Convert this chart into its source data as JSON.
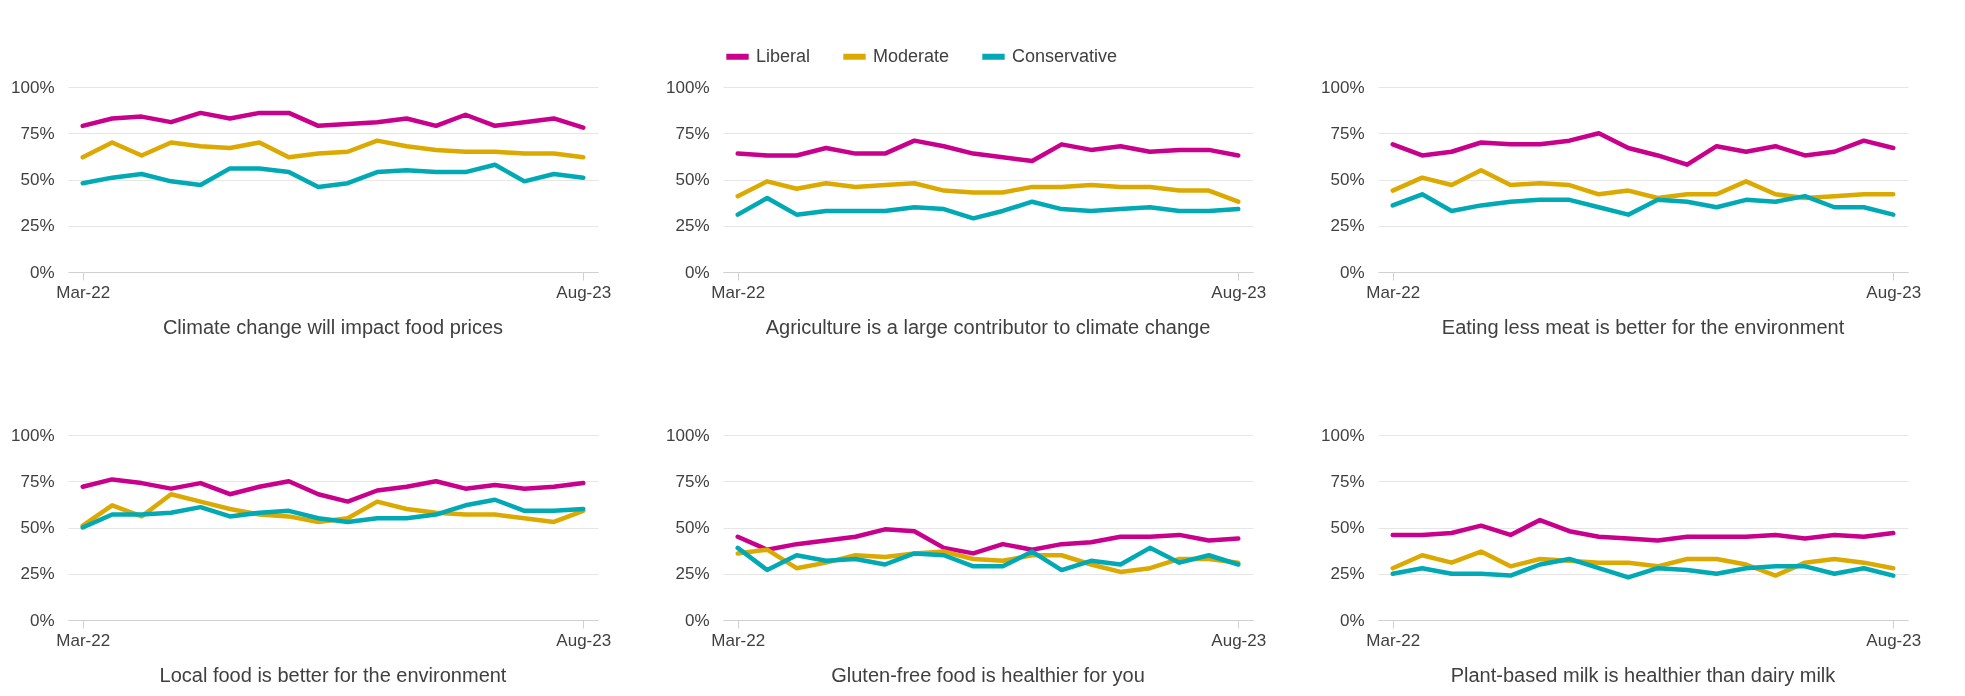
{
  "chart_data": [
    {
      "type": "line",
      "title": "Climate change will impact food prices",
      "categories": [
        "Mar-22",
        null,
        null,
        null,
        null,
        null,
        null,
        null,
        null,
        null,
        null,
        null,
        null,
        null,
        null,
        null,
        null,
        "Aug-23"
      ],
      "ylim": [
        0,
        100
      ],
      "yticks": [
        {
          "value": 0,
          "label": "0%"
        },
        {
          "value": 25,
          "label": "25%"
        },
        {
          "value": 50,
          "label": "50%"
        },
        {
          "value": 75,
          "label": "75%"
        },
        {
          "value": 100,
          "label": "100%"
        }
      ],
      "grid": "y",
      "legend": false,
      "series": [
        {
          "color": "#c8008c",
          "values": [
            79,
            83,
            84,
            81,
            86,
            83,
            86,
            86,
            79,
            80,
            81,
            83,
            79,
            85,
            79,
            81,
            83,
            78
          ]
        },
        {
          "color": "#dba900",
          "values": [
            62,
            70,
            63,
            70,
            68,
            67,
            70,
            62,
            64,
            65,
            71,
            68,
            66,
            65,
            65,
            64,
            64,
            62
          ]
        },
        {
          "color": "#00a9b4",
          "values": [
            48,
            51,
            53,
            49,
            47,
            56,
            56,
            54,
            46,
            48,
            54,
            55,
            54,
            54,
            58,
            49,
            53,
            51
          ]
        }
      ]
    },
    {
      "type": "line",
      "title": "Agriculture is a large contributor to climate change",
      "categories": [
        "Mar-22",
        null,
        null,
        null,
        null,
        null,
        null,
        null,
        null,
        null,
        null,
        null,
        null,
        null,
        null,
        null,
        null,
        "Aug-23"
      ],
      "ylim": [
        0,
        100
      ],
      "yticks": [
        {
          "value": 0,
          "label": "0%"
        },
        {
          "value": 25,
          "label": "25%"
        },
        {
          "value": 50,
          "label": "50%"
        },
        {
          "value": 75,
          "label": "75%"
        },
        {
          "value": 100,
          "label": "100%"
        }
      ],
      "grid": "y",
      "legend": "top",
      "series": [
        {
          "name": "Liberal",
          "color": "#c8008c",
          "values": [
            64,
            63,
            63,
            67,
            64,
            64,
            71,
            68,
            64,
            62,
            60,
            69,
            66,
            68,
            65,
            66,
            66,
            63
          ]
        },
        {
          "name": "Moderate",
          "color": "#dba900",
          "values": [
            41,
            49,
            45,
            48,
            46,
            47,
            48,
            44,
            43,
            43,
            46,
            46,
            47,
            46,
            46,
            44,
            44,
            38
          ]
        },
        {
          "name": "Conservative",
          "color": "#00a9b4",
          "values": [
            31,
            40,
            31,
            33,
            33,
            33,
            35,
            34,
            29,
            33,
            38,
            34,
            33,
            34,
            35,
            33,
            33,
            34
          ]
        }
      ]
    },
    {
      "type": "line",
      "title": "Eating less meat is better for the environment",
      "categories": [
        "Mar-22",
        null,
        null,
        null,
        null,
        null,
        null,
        null,
        null,
        null,
        null,
        null,
        null,
        null,
        null,
        null,
        null,
        "Aug-23"
      ],
      "ylim": [
        0,
        100
      ],
      "yticks": [
        {
          "value": 0,
          "label": "0%"
        },
        {
          "value": 25,
          "label": "25%"
        },
        {
          "value": 50,
          "label": "50%"
        },
        {
          "value": 75,
          "label": "75%"
        },
        {
          "value": 100,
          "label": "100%"
        }
      ],
      "grid": "y",
      "legend": false,
      "series": [
        {
          "color": "#c8008c",
          "values": [
            69,
            63,
            65,
            70,
            69,
            69,
            71,
            75,
            67,
            63,
            58,
            68,
            65,
            68,
            63,
            65,
            71,
            67
          ]
        },
        {
          "color": "#dba900",
          "values": [
            44,
            51,
            47,
            55,
            47,
            48,
            47,
            42,
            44,
            40,
            42,
            42,
            49,
            42,
            40,
            41,
            42,
            42
          ]
        },
        {
          "color": "#00a9b4",
          "values": [
            36,
            42,
            33,
            36,
            38,
            39,
            39,
            35,
            31,
            39,
            38,
            35,
            39,
            38,
            41,
            35,
            35,
            31
          ]
        }
      ]
    },
    {
      "type": "line",
      "title": "Local food is better for the environment",
      "categories": [
        "Mar-22",
        null,
        null,
        null,
        null,
        null,
        null,
        null,
        null,
        null,
        null,
        null,
        null,
        null,
        null,
        null,
        null,
        "Aug-23"
      ],
      "ylim": [
        0,
        100
      ],
      "yticks": [
        {
          "value": 0,
          "label": "0%"
        },
        {
          "value": 25,
          "label": "25%"
        },
        {
          "value": 50,
          "label": "50%"
        },
        {
          "value": 75,
          "label": "75%"
        },
        {
          "value": 100,
          "label": "100%"
        }
      ],
      "grid": "y",
      "legend": false,
      "series": [
        {
          "color": "#c8008c",
          "values": [
            72,
            76,
            74,
            71,
            74,
            68,
            72,
            75,
            68,
            64,
            70,
            72,
            75,
            71,
            73,
            71,
            72,
            74
          ]
        },
        {
          "color": "#dba900",
          "values": [
            51,
            62,
            56,
            68,
            64,
            60,
            57,
            56,
            53,
            55,
            64,
            60,
            58,
            57,
            57,
            55,
            53,
            59
          ]
        },
        {
          "color": "#00a9b4",
          "values": [
            50,
            57,
            57,
            58,
            61,
            56,
            58,
            59,
            55,
            53,
            55,
            55,
            57,
            62,
            65,
            59,
            59,
            60
          ]
        }
      ]
    },
    {
      "type": "line",
      "title": "Gluten-free food is healthier for you",
      "categories": [
        "Mar-22",
        null,
        null,
        null,
        null,
        null,
        null,
        null,
        null,
        null,
        null,
        null,
        null,
        null,
        null,
        null,
        null,
        "Aug-23"
      ],
      "ylim": [
        0,
        100
      ],
      "yticks": [
        {
          "value": 0,
          "label": "0%"
        },
        {
          "value": 25,
          "label": "25%"
        },
        {
          "value": 50,
          "label": "50%"
        },
        {
          "value": 75,
          "label": "75%"
        },
        {
          "value": 100,
          "label": "100%"
        }
      ],
      "grid": "y",
      "legend": false,
      "series": [
        {
          "color": "#c8008c",
          "values": [
            45,
            38,
            41,
            43,
            45,
            49,
            48,
            39,
            36,
            41,
            38,
            41,
            42,
            45,
            45,
            46,
            43,
            44
          ]
        },
        {
          "color": "#dba900",
          "values": [
            36,
            38,
            28,
            31,
            35,
            34,
            36,
            37,
            33,
            32,
            35,
            35,
            30,
            26,
            28,
            33,
            33,
            31
          ]
        },
        {
          "color": "#00a9b4",
          "values": [
            39,
            27,
            35,
            32,
            33,
            30,
            36,
            35,
            29,
            29,
            37,
            27,
            32,
            30,
            39,
            31,
            35,
            30
          ]
        }
      ]
    },
    {
      "type": "line",
      "title": "Plant-based milk is healthier than dairy milk",
      "categories": [
        "Mar-22",
        null,
        null,
        null,
        null,
        null,
        null,
        null,
        null,
        null,
        null,
        null,
        null,
        null,
        null,
        null,
        null,
        "Aug-23"
      ],
      "ylim": [
        0,
        100
      ],
      "yticks": [
        {
          "value": 0,
          "label": "0%"
        },
        {
          "value": 25,
          "label": "25%"
        },
        {
          "value": 50,
          "label": "50%"
        },
        {
          "value": 75,
          "label": "75%"
        },
        {
          "value": 100,
          "label": "100%"
        }
      ],
      "grid": "y",
      "legend": false,
      "series": [
        {
          "color": "#c8008c",
          "values": [
            46,
            46,
            47,
            51,
            46,
            54,
            48,
            45,
            44,
            43,
            45,
            45,
            45,
            46,
            44,
            46,
            45,
            47
          ]
        },
        {
          "color": "#dba900",
          "values": [
            28,
            35,
            31,
            37,
            29,
            33,
            32,
            31,
            31,
            29,
            33,
            33,
            30,
            24,
            31,
            33,
            31,
            28
          ]
        },
        {
          "color": "#00a9b4",
          "values": [
            25,
            28,
            25,
            25,
            24,
            30,
            33,
            28,
            23,
            28,
            27,
            25,
            28,
            29,
            29,
            25,
            28,
            24
          ]
        }
      ]
    }
  ]
}
